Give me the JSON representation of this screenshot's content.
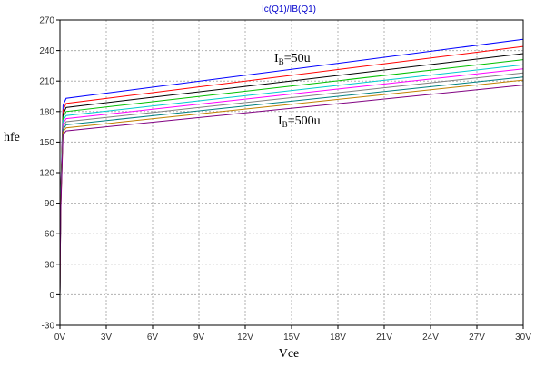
{
  "chart_data": {
    "type": "line",
    "title": "Ic(Q1)/IB(Q1)",
    "xlabel": "Vce",
    "ylabel": "hfe",
    "xlim": [
      0,
      30
    ],
    "ylim": [
      -30,
      270
    ],
    "x_ticks": [
      "0V",
      "3V",
      "6V",
      "9V",
      "12V",
      "15V",
      "18V",
      "21V",
      "24V",
      "27V",
      "30V"
    ],
    "y_ticks": [
      "-30",
      "0",
      "30",
      "60",
      "90",
      "120",
      "150",
      "180",
      "210",
      "240",
      "270"
    ],
    "grid": true,
    "x": [
      0,
      0.05,
      0.2,
      0.4,
      30
    ],
    "series": [
      {
        "color": "#0000ff",
        "values": [
          0,
          100,
          186,
          193,
          251
        ]
      },
      {
        "color": "#ff0000",
        "values": [
          0,
          98,
          181,
          188,
          244
        ]
      },
      {
        "color": "#000000",
        "values": [
          0,
          96,
          177,
          184,
          237
        ]
      },
      {
        "color": "#00c000",
        "values": [
          0,
          94,
          174,
          180,
          231
        ]
      },
      {
        "color": "#00cccc",
        "values": [
          0,
          92,
          171,
          176,
          226
        ]
      },
      {
        "color": "#ff00ff",
        "values": [
          0,
          90,
          168,
          173,
          222
        ]
      },
      {
        "color": "#808080",
        "values": [
          0,
          88,
          165,
          170,
          218
        ]
      },
      {
        "color": "#008080",
        "values": [
          0,
          86,
          162,
          167,
          214
        ]
      },
      {
        "color": "#c08000",
        "values": [
          0,
          84,
          160,
          164,
          211
        ]
      },
      {
        "color": "#800080",
        "values": [
          0,
          82,
          157,
          161,
          206
        ]
      }
    ],
    "annotations": [
      {
        "base": "I",
        "sub": "B",
        "rest": "=50u"
      },
      {
        "base": "I",
        "sub": "B",
        "rest": "=500u"
      }
    ]
  },
  "colors": {
    "title": "#0000cc",
    "grid": "#b0b0b0",
    "axis": "#000000"
  }
}
